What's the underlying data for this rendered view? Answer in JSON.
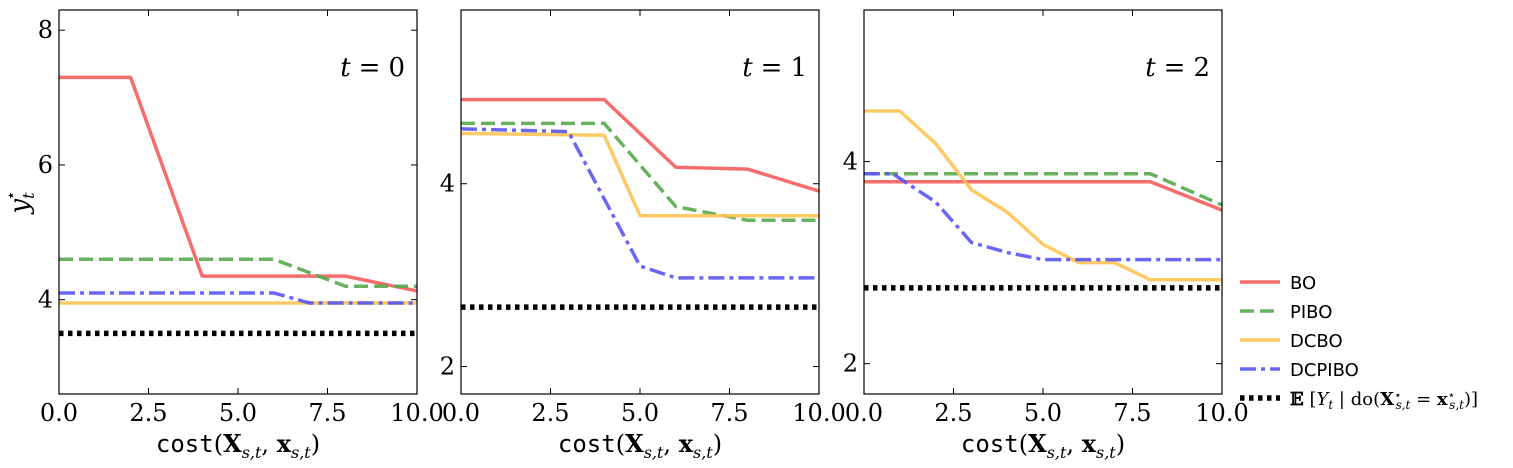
{
  "chart_data": [
    {
      "type": "line",
      "title": "t = 0",
      "xlabel": "cost(X_{s,t}, x_{s,t})",
      "ylabel": "y_t^*",
      "xlim": [
        0,
        10
      ],
      "ylim": [
        2.6,
        8.3
      ],
      "xticks": [
        0,
        2.5,
        5,
        7.5,
        10
      ],
      "xtick_labels": [
        "0.0",
        "2.5",
        "5.0",
        "7.5",
        "10.0"
      ],
      "yticks": [
        4,
        6,
        8
      ],
      "ytick_labels": [
        "4",
        "6",
        "8"
      ],
      "series": [
        {
          "name": "BO",
          "x": [
            0,
            2,
            4,
            8,
            10
          ],
          "y": [
            7.3,
            7.3,
            4.35,
            4.35,
            4.13
          ]
        },
        {
          "name": "PIBO",
          "x": [
            0,
            6,
            8,
            10
          ],
          "y": [
            4.6,
            4.6,
            4.2,
            4.2
          ]
        },
        {
          "name": "DCBO",
          "x": [
            0,
            10
          ],
          "y": [
            3.95,
            3.95
          ]
        },
        {
          "name": "DCPIBO",
          "x": [
            0,
            6,
            7,
            10
          ],
          "y": [
            4.1,
            4.1,
            3.95,
            3.95
          ]
        },
        {
          "name": "E[Y_t | do(X*_{s,t} = x*_{s,t})]",
          "x": [
            0,
            10
          ],
          "y": [
            3.5,
            3.5
          ]
        }
      ]
    },
    {
      "type": "line",
      "title": "t = 1",
      "xlabel": "cost(X_{s,t}, x_{s,t})",
      "xlim": [
        0,
        10
      ],
      "ylim": [
        1.7,
        5.9
      ],
      "xticks": [
        0,
        2.5,
        5,
        7.5,
        10
      ],
      "xtick_labels": [
        "0.0",
        "2.5",
        "5.0",
        "7.5",
        "10.0"
      ],
      "yticks": [
        2,
        4
      ],
      "ytick_labels": [
        "2",
        "4"
      ],
      "series": [
        {
          "name": "BO",
          "x": [
            0,
            4,
            6,
            8,
            10
          ],
          "y": [
            4.92,
            4.92,
            4.18,
            4.16,
            3.92
          ]
        },
        {
          "name": "PIBO",
          "x": [
            0,
            4,
            6,
            8,
            10
          ],
          "y": [
            4.66,
            4.66,
            3.75,
            3.6,
            3.6
          ]
        },
        {
          "name": "DCBO",
          "x": [
            0,
            4,
            5,
            10
          ],
          "y": [
            4.55,
            4.53,
            3.65,
            3.65
          ]
        },
        {
          "name": "DCPIBO",
          "x": [
            0,
            3,
            5,
            6,
            10
          ],
          "y": [
            4.6,
            4.57,
            3.1,
            2.97,
            2.97
          ]
        },
        {
          "name": "E[Y_t | do(X*_{s,t} = x*_{s,t})]",
          "x": [
            0,
            10
          ],
          "y": [
            2.65,
            2.65
          ]
        }
      ]
    },
    {
      "type": "line",
      "title": "t = 2",
      "xlabel": "cost(X_{s,t}, x_{s,t})",
      "xlim": [
        0,
        10
      ],
      "ylim": [
        1.7,
        5.5
      ],
      "xticks": [
        0,
        2.5,
        5,
        7.5,
        10
      ],
      "xtick_labels": [
        "0.0",
        "2.5",
        "5.0",
        "7.5",
        "10.0"
      ],
      "yticks": [
        2,
        4
      ],
      "ytick_labels": [
        "2",
        "4"
      ],
      "series": [
        {
          "name": "BO",
          "x": [
            0,
            8,
            10
          ],
          "y": [
            3.8,
            3.8,
            3.52
          ]
        },
        {
          "name": "PIBO",
          "x": [
            0,
            8,
            10
          ],
          "y": [
            3.88,
            3.88,
            3.57
          ]
        },
        {
          "name": "DCBO",
          "x": [
            0,
            1,
            2,
            3,
            4,
            5,
            6,
            7,
            8,
            10
          ],
          "y": [
            4.5,
            4.5,
            4.18,
            3.72,
            3.5,
            3.18,
            3.0,
            3.0,
            2.83,
            2.83
          ]
        },
        {
          "name": "DCPIBO",
          "x": [
            0,
            0.8,
            2,
            3,
            4,
            5,
            10
          ],
          "y": [
            3.88,
            3.88,
            3.6,
            3.2,
            3.1,
            3.03,
            3.03
          ]
        },
        {
          "name": "E[Y_t | do(X*_{s,t} = x*_{s,t})]",
          "x": [
            0,
            10
          ],
          "y": [
            2.75,
            2.75
          ]
        }
      ]
    }
  ],
  "legend": {
    "placement": "right",
    "entries": [
      {
        "label": "BO",
        "color": "#f55d5d",
        "dash": "solid"
      },
      {
        "label": "PIBO",
        "color": "#56a84e",
        "dash": "dashed"
      },
      {
        "label": "DCBO",
        "color": "#fdc455",
        "dash": "solid"
      },
      {
        "label": "DCPIBO",
        "color": "#5a56f4",
        "dash": "dashdot"
      },
      {
        "label": "E[Y_t | do(X*_{s,t} = x*_{s,t})]",
        "color": "#000000",
        "dash": "dotted"
      }
    ]
  },
  "colors": {
    "BO": "#f55d5d",
    "PIBO": "#56a84e",
    "DCBO": "#fdc455",
    "DCPIBO": "#5a56f4",
    "target": "#000000"
  }
}
